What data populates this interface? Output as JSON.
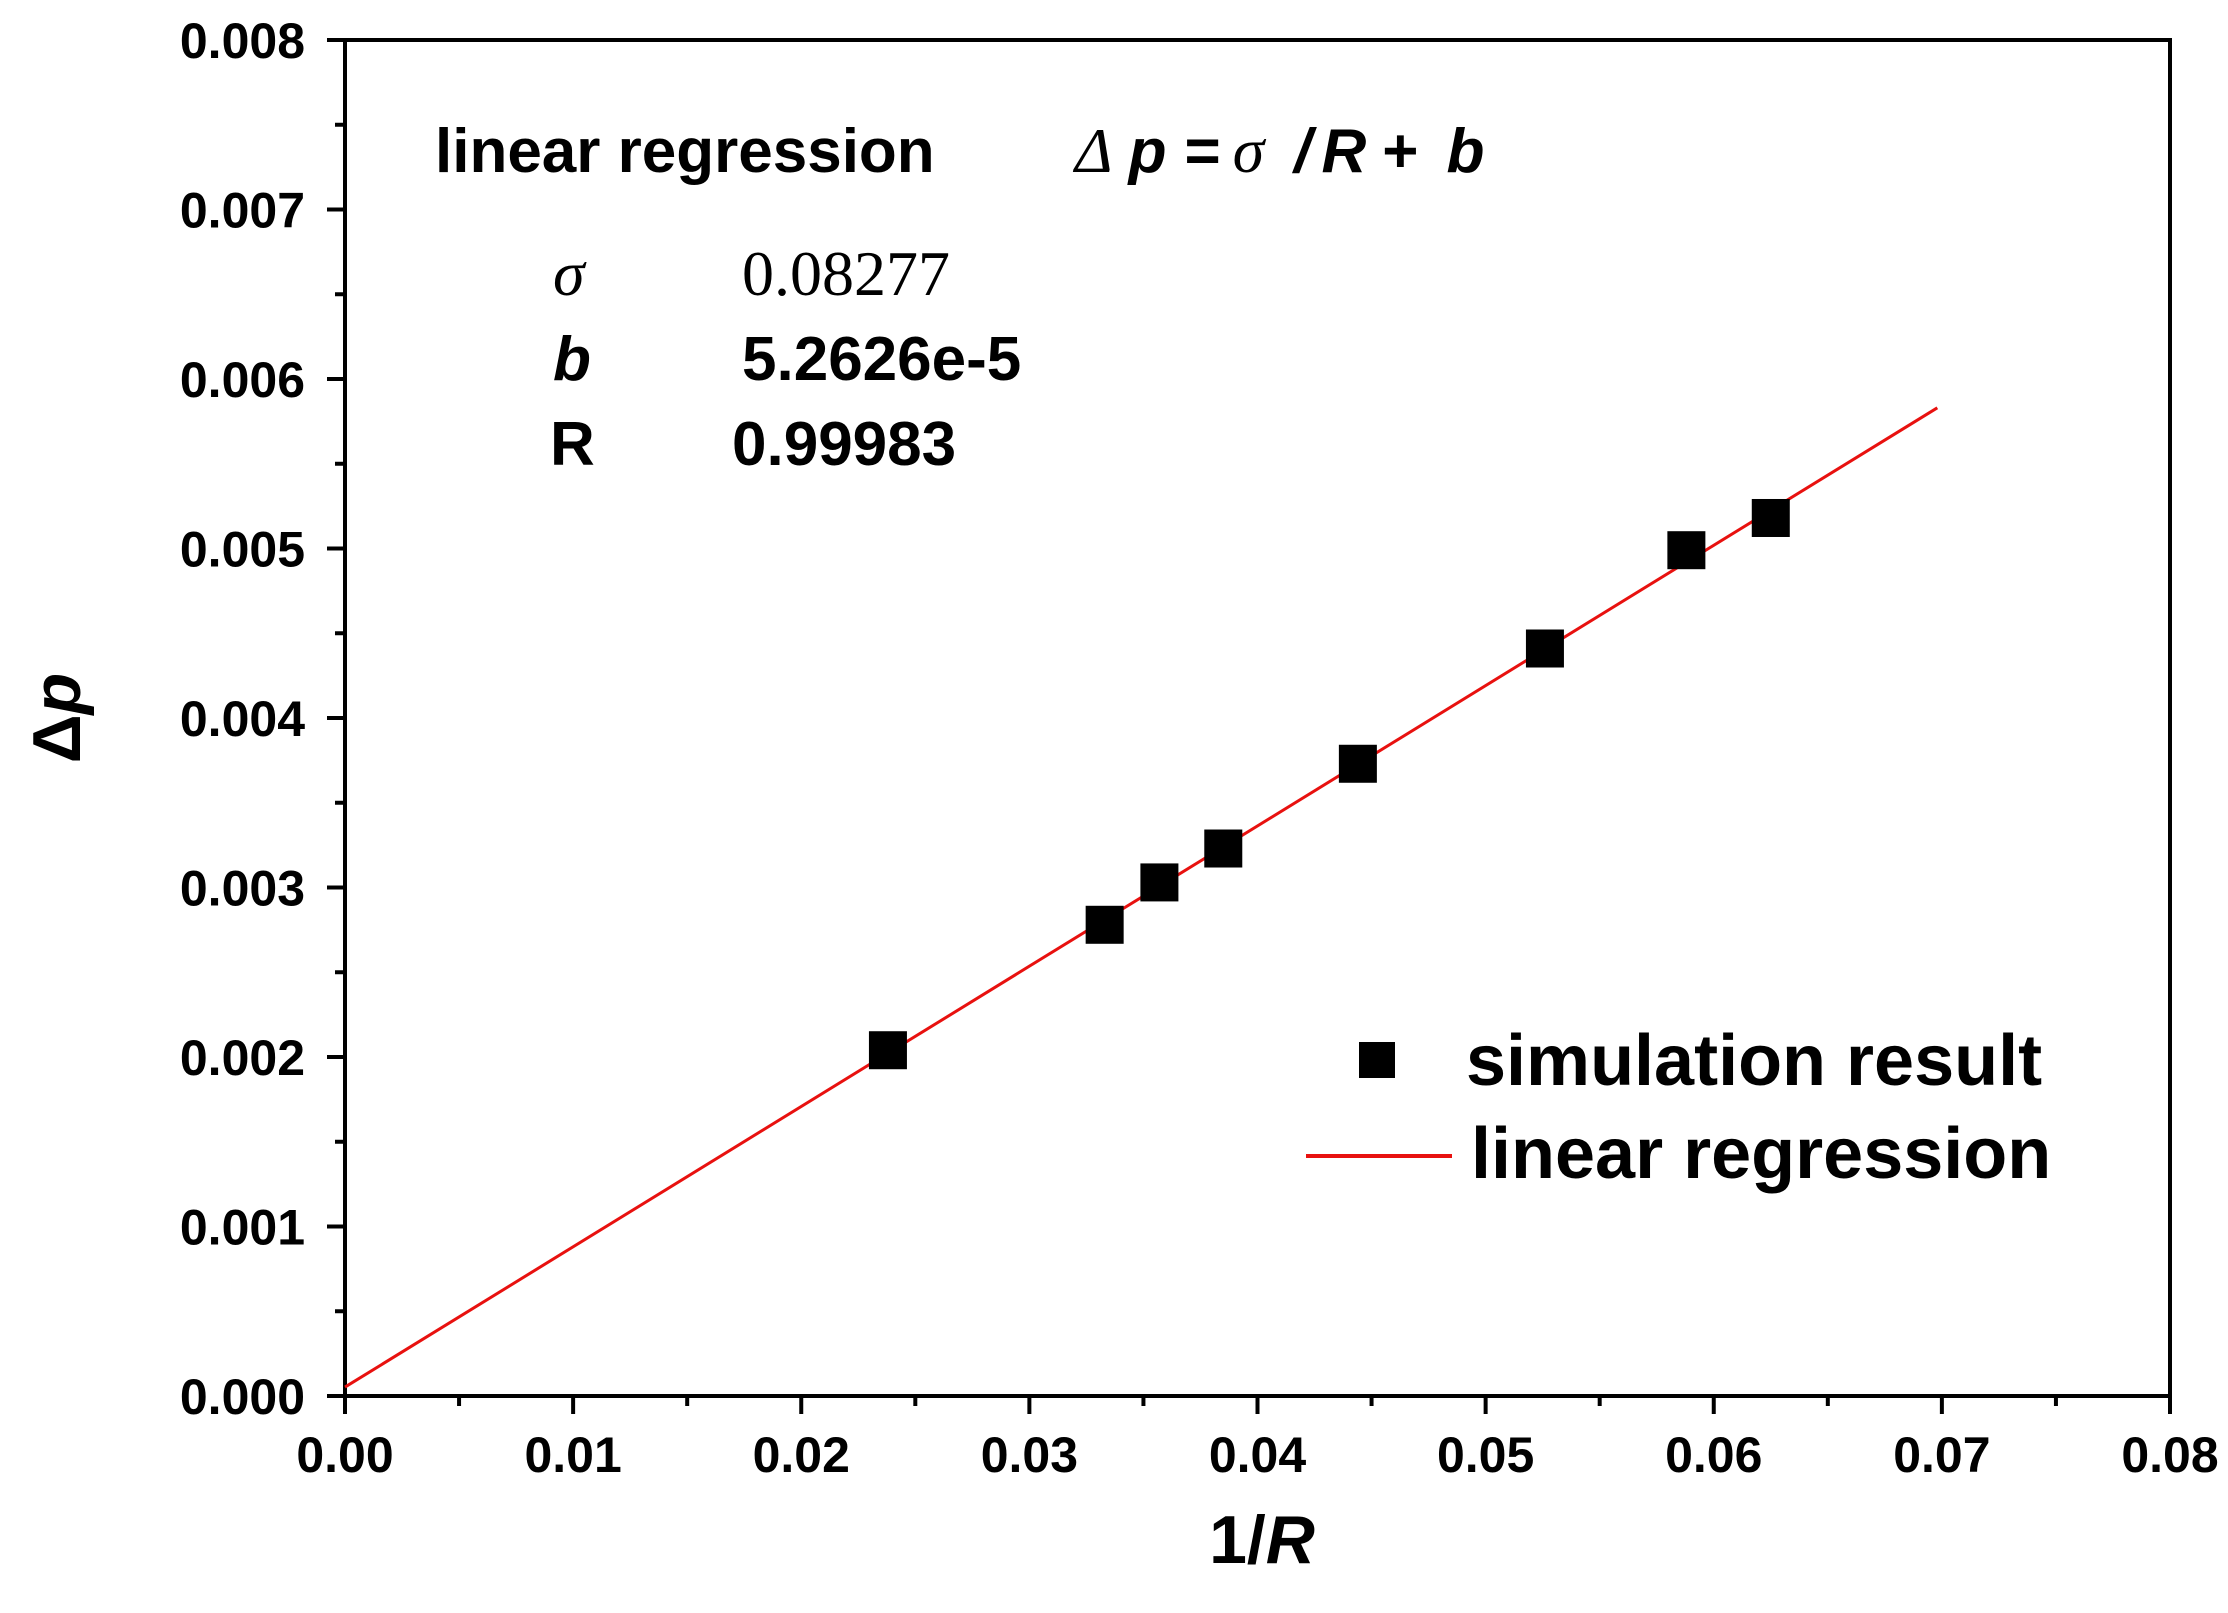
{
  "chart_data": {
    "type": "scatter",
    "xlabel": {
      "prefix": "1/",
      "var": "R"
    },
    "ylabel": {
      "prefix": "Δ",
      "var": "p"
    },
    "xlim": [
      0.0,
      0.08
    ],
    "ylim": [
      0.0,
      0.008
    ],
    "xticks": [
      "0.00",
      "0.01",
      "0.02",
      "0.03",
      "0.04",
      "0.05",
      "0.06",
      "0.07",
      "0.08"
    ],
    "yticks": [
      "0.000",
      "0.001",
      "0.002",
      "0.003",
      "0.004",
      "0.005",
      "0.006",
      "0.007",
      "0.008"
    ],
    "series": [
      {
        "name": "simulation result",
        "kind": "scatter",
        "marker": "square",
        "color": "#000000",
        "x": [
          0.0238,
          0.0333,
          0.0357,
          0.0385,
          0.0444,
          0.0526,
          0.0588,
          0.0625
        ],
        "y": [
          0.00204,
          0.00278,
          0.00303,
          0.00323,
          0.00373,
          0.00441,
          0.00499,
          0.00518
        ]
      },
      {
        "name": "linear regression",
        "kind": "line",
        "color": "#e8110f",
        "x": [
          0.0,
          0.0698
        ],
        "y": [
          5.26e-05,
          0.00583
        ]
      }
    ],
    "annotation": {
      "title": "linear  regression",
      "eq_delta": "Δ",
      "eq_p": "p",
      "eq_eq": "=",
      "eq_sigma": "σ",
      "eq_slash": "/",
      "eq_R": "R",
      "eq_plus": "+",
      "eq_b": "b",
      "rows": [
        {
          "key": "σ",
          "value": "0.08277"
        },
        {
          "key": "b",
          "value": "5.2626e-5"
        },
        {
          "key": "R",
          "value": "0.99983"
        }
      ]
    },
    "legend": {
      "position": "bottom-right",
      "entries": [
        "simulation result",
        "linear regression"
      ]
    }
  }
}
